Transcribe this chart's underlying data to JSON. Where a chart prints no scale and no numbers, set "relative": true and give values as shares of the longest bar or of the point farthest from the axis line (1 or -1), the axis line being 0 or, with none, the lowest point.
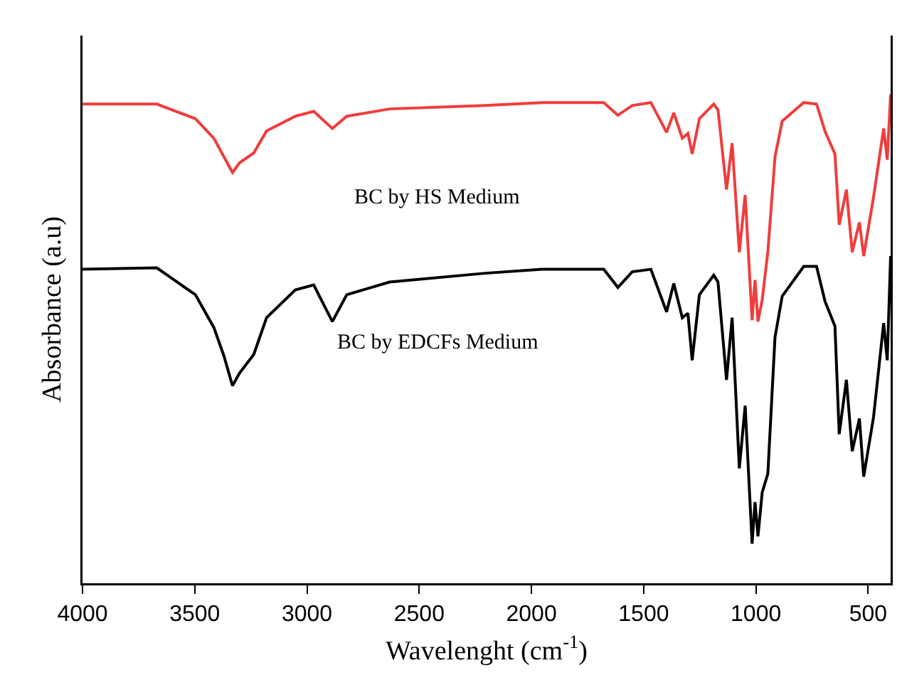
{
  "chart_data": {
    "type": "line",
    "relative": true,
    "xlabel": "Wavelenght (cm$^{-1}$)",
    "ylabel": "Absorbance (a.u)",
    "xlim": [
      4000,
      400
    ],
    "xticks": [
      4000,
      3500,
      3000,
      2500,
      2000,
      1500,
      1000,
      500
    ],
    "series": [
      {
        "name": "BC by HS Medium",
        "color": "#f03c3c",
        "x": [
          4000,
          3669,
          3497,
          3415,
          3332,
          3300,
          3237,
          3180,
          3052,
          2970,
          2887,
          2823,
          2632,
          2206,
          1952,
          1678,
          1615,
          1551,
          1468,
          1398,
          1366,
          1328,
          1303,
          1284,
          1252,
          1188,
          1169,
          1131,
          1106,
          1074,
          1048,
          1017,
          1004,
          991,
          972,
          947,
          915,
          883,
          787,
          730,
          692,
          648,
          629,
          597,
          571,
          539,
          520,
          476,
          431,
          415,
          400
        ],
        "values": [
          0.98,
          0.98,
          0.95,
          0.91,
          0.84,
          0.86,
          0.88,
          0.925,
          0.955,
          0.965,
          0.93,
          0.955,
          0.97,
          0.977,
          0.983,
          0.983,
          0.957,
          0.977,
          0.983,
          0.922,
          0.962,
          0.91,
          0.92,
          0.878,
          0.95,
          0.98,
          0.968,
          0.805,
          0.9,
          0.677,
          0.794,
          0.538,
          0.62,
          0.535,
          0.58,
          0.677,
          0.872,
          0.945,
          0.983,
          0.98,
          0.924,
          0.878,
          0.733,
          0.805,
          0.677,
          0.738,
          0.669,
          0.79,
          0.93,
          0.866,
          1
        ]
      },
      {
        "name": "BC by EDCFs Medium",
        "color": "#000000",
        "x": [
          4000,
          3669,
          3497,
          3415,
          3370,
          3332,
          3300,
          3237,
          3180,
          3052,
          2970,
          2887,
          2823,
          2632,
          2206,
          1952,
          1678,
          1615,
          1551,
          1468,
          1398,
          1366,
          1328,
          1303,
          1284,
          1252,
          1188,
          1169,
          1131,
          1106,
          1074,
          1048,
          1017,
          1004,
          991,
          972,
          947,
          915,
          883,
          787,
          730,
          692,
          648,
          629,
          597,
          571,
          539,
          520,
          476,
          431,
          415,
          400
        ],
        "values": [
          0.642,
          0.645,
          0.59,
          0.523,
          0.465,
          0.404,
          0.43,
          0.468,
          0.543,
          0.6,
          0.61,
          0.535,
          0.59,
          0.616,
          0.634,
          0.642,
          0.642,
          0.605,
          0.637,
          0.642,
          0.555,
          0.613,
          0.543,
          0.552,
          0.456,
          0.59,
          0.63,
          0.616,
          0.416,
          0.543,
          0.235,
          0.363,
          0.081,
          0.166,
          0.096,
          0.186,
          0.224,
          0.503,
          0.587,
          0.648,
          0.648,
          0.576,
          0.526,
          0.305,
          0.416,
          0.27,
          0.337,
          0.218,
          0.34,
          0.532,
          0.456,
          0.669
        ]
      }
    ]
  }
}
